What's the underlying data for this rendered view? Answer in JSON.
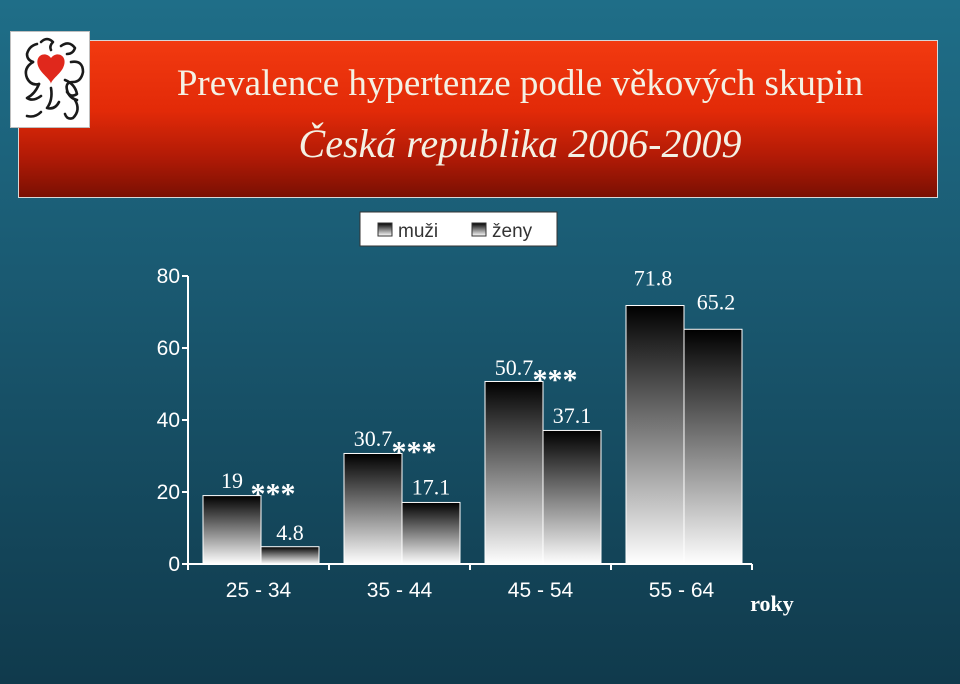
{
  "header": {
    "title_line1": "Prevalence hypertenze podle věkových  skupin",
    "title_line2": "Česká republika 2006-2009"
  },
  "logo": {
    "icon": "heraldic-lion-with-heart-icon"
  },
  "colors": {
    "title_bg": "#e22a08",
    "page_bg": "#1a5a72",
    "bar_top": "#000000",
    "bar_bottom": "#ffffff",
    "axis": "#ffffff",
    "text": "#ffffff"
  },
  "chart_data": {
    "type": "bar",
    "categories": [
      "25 - 34",
      "35 - 44",
      "45 - 54",
      "55 - 64"
    ],
    "series": [
      {
        "name": "muži",
        "values": [
          19,
          30.7,
          50.7,
          71.8
        ]
      },
      {
        "name": "ženy",
        "values": [
          4.8,
          17.1,
          37.1,
          65.2
        ]
      }
    ],
    "significance": [
      "***",
      "***",
      "***",
      null
    ],
    "yticks": [
      0,
      20,
      40,
      60,
      80
    ],
    "ylim": [
      0,
      80
    ],
    "x_unit_label": "roky",
    "legend_position": "top-center",
    "grid": false
  }
}
